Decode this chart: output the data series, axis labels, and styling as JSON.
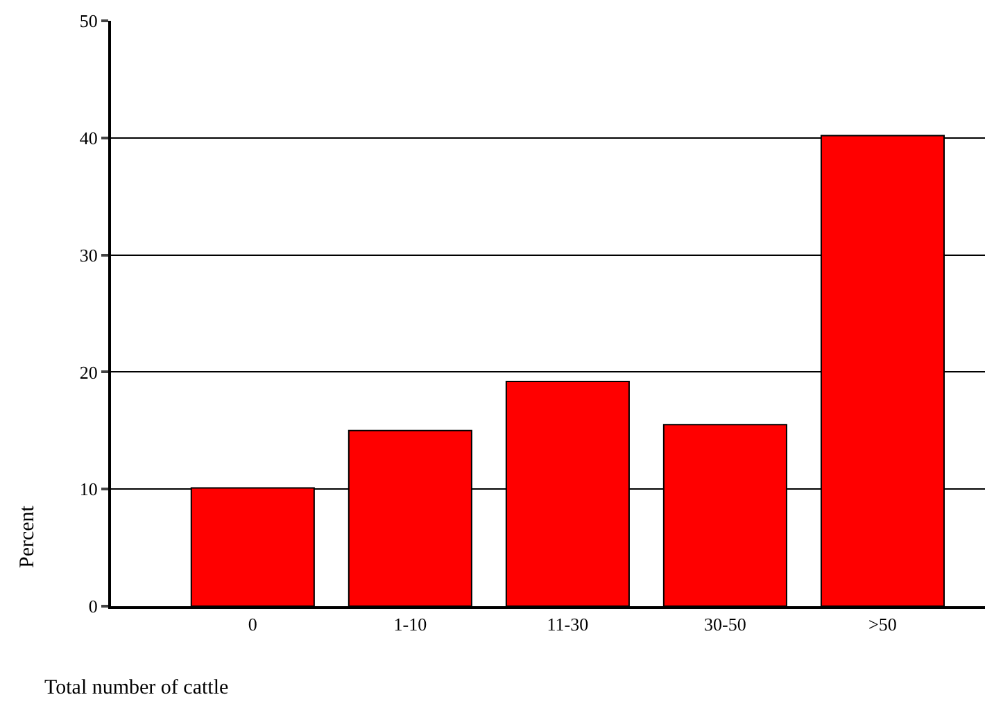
{
  "chart_data": {
    "type": "bar",
    "xlabel": "Total number of cattle",
    "ylabel": "Percent",
    "categories": [
      "0",
      "1-10",
      "11-30",
      "30-50",
      ">50"
    ],
    "values": [
      10.1,
      15.0,
      19.2,
      15.5,
      40.2
    ],
    "color": "#ff0000",
    "ylim": [
      0,
      50
    ],
    "yticks": [
      0,
      10,
      20,
      30,
      40,
      50
    ],
    "grid": "y",
    "legend": false
  }
}
